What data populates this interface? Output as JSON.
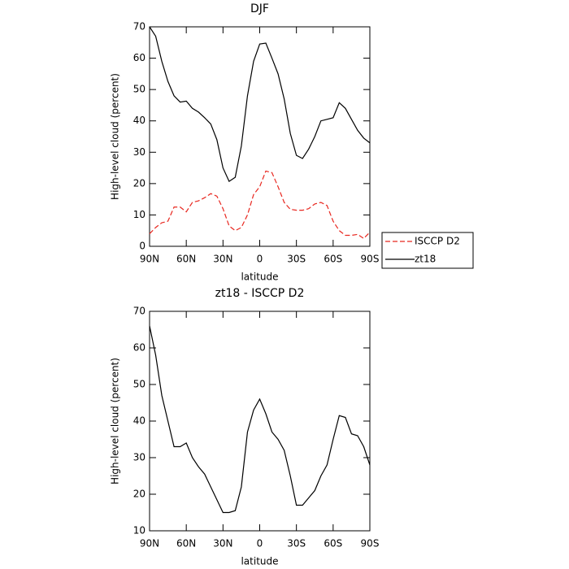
{
  "chart_data": [
    {
      "type": "line",
      "title": "DJF",
      "xlabel": "latitude",
      "ylabel": "High-level cloud (percent)",
      "x": [
        90,
        85,
        80,
        75,
        70,
        65,
        60,
        55,
        50,
        45,
        40,
        35,
        30,
        25,
        20,
        15,
        10,
        5,
        0,
        -5,
        -10,
        -15,
        -20,
        -25,
        -30,
        -35,
        -40,
        -45,
        -50,
        -55,
        -60,
        -65,
        -70,
        -75,
        -80,
        -85,
        -90
      ],
      "series": [
        {
          "name": "ISCCP D2",
          "color": "#e8271f",
          "dash": true,
          "values": [
            4,
            6,
            7.5,
            8,
            12.5,
            12.5,
            11,
            14,
            14.5,
            15.5,
            16.8,
            16,
            12,
            6.5,
            5,
            6,
            10,
            16.5,
            19,
            24,
            23.5,
            19,
            14,
            11.8,
            11.5,
            11.5,
            12,
            13.5,
            14,
            13,
            8,
            5,
            3.5,
            3.5,
            3.8,
            2.5,
            4.5
          ]
        },
        {
          "name": "zt18",
          "color": "#000000",
          "dash": false,
          "values": [
            70,
            67,
            59,
            52.6,
            48,
            46,
            46.3,
            44,
            42.8,
            41,
            39,
            34,
            25,
            20.7,
            22,
            32,
            48,
            59,
            64.5,
            64.8,
            60,
            55,
            47,
            36,
            29,
            28,
            31,
            35,
            40,
            40.5,
            41,
            45.8,
            44,
            40.5,
            37,
            34.5,
            33
          ]
        }
      ],
      "xlim": [
        90,
        -90
      ],
      "xticks": [
        {
          "value": 90,
          "label": "90N"
        },
        {
          "value": 60,
          "label": "60N"
        },
        {
          "value": 30,
          "label": "30N"
        },
        0,
        {
          "value": -30,
          "label": "30S"
        },
        {
          "value": -60,
          "label": "60S"
        },
        {
          "value": -90,
          "label": "90S"
        }
      ],
      "ylim": [
        0,
        70
      ],
      "yticks": [
        0,
        10,
        20,
        30,
        40,
        50,
        60,
        70
      ],
      "legend": "right"
    },
    {
      "type": "line",
      "title": "zt18 - ISCCP D2",
      "xlabel": "latitude",
      "ylabel": "High-level cloud (percent)",
      "x": [
        90,
        85,
        80,
        75,
        70,
        65,
        60,
        55,
        50,
        45,
        40,
        35,
        30,
        25,
        20,
        15,
        10,
        5,
        0,
        -5,
        -10,
        -15,
        -20,
        -25,
        -30,
        -35,
        -40,
        -45,
        -50,
        -55,
        -60,
        -65,
        -70,
        -75,
        -80,
        -85,
        -90
      ],
      "series": [
        {
          "color": "#000000",
          "dash": false,
          "values": [
            66,
            58,
            47,
            40,
            33,
            33,
            34,
            30,
            27.5,
            25.5,
            22,
            18.5,
            15,
            15,
            15.5,
            22,
            37,
            43,
            46,
            42,
            37,
            35,
            32,
            25,
            17,
            17,
            19,
            21,
            25,
            28,
            35,
            41.5,
            41,
            36.5,
            36,
            33,
            28
          ]
        }
      ],
      "xlim": [
        90,
        -90
      ],
      "xticks": [
        {
          "value": 90,
          "label": "90N"
        },
        {
          "value": 60,
          "label": "60N"
        },
        {
          "value": 30,
          "label": "30N"
        },
        0,
        {
          "value": -30,
          "label": "30S"
        },
        {
          "value": -60,
          "label": "60S"
        },
        {
          "value": -90,
          "label": "90S"
        }
      ],
      "ylim": [
        10,
        70
      ],
      "yticks": [
        10,
        20,
        30,
        40,
        50,
        60,
        70
      ]
    }
  ]
}
